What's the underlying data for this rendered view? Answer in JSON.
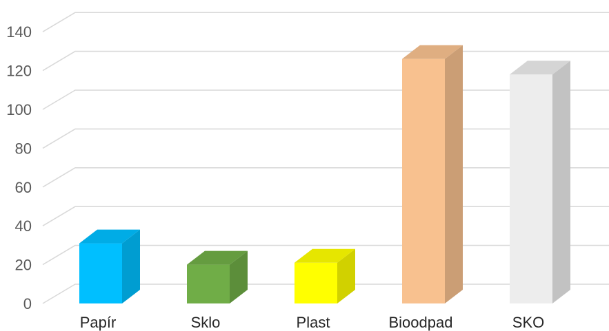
{
  "chart_data": {
    "type": "bar",
    "categories": [
      "Papír",
      "Sklo",
      "Plast",
      "Bioodpad",
      "SKO"
    ],
    "values": [
      31,
      20,
      21,
      126,
      118
    ],
    "colors": [
      "#00BFFF",
      "#70AD47",
      "#FFFF00",
      "#F8C18F",
      "#EDEDED"
    ],
    "ylim": [
      0,
      140
    ],
    "yticks": [
      0,
      20,
      40,
      60,
      80,
      100,
      120,
      140
    ],
    "title": "",
    "xlabel": "",
    "ylabel": "",
    "grid": true,
    "legend": "none"
  }
}
